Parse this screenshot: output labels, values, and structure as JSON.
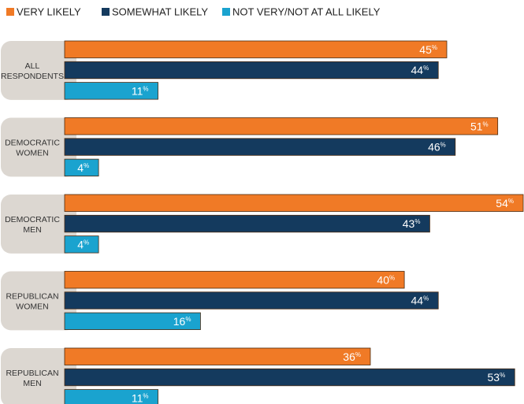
{
  "chart_data": {
    "type": "bar",
    "orientation": "horizontal",
    "categories": [
      [
        "ALL",
        "RESPONDENTS"
      ],
      [
        "DEMOCRATIC",
        "WOMEN"
      ],
      [
        "DEMOCRATIC",
        "MEN"
      ],
      [
        "REPUBLICAN",
        "WOMEN"
      ],
      [
        "REPUBLICAN",
        "MEN"
      ]
    ],
    "series": [
      {
        "name": "VERY LIKELY",
        "color": "#f07a26",
        "values": [
          45,
          51,
          54,
          40,
          36
        ]
      },
      {
        "name": "SOMEWHAT LIKELY",
        "color": "#143a5e",
        "values": [
          44,
          46,
          43,
          44,
          53
        ]
      },
      {
        "name": "NOT VERY/NOT AT ALL LIKELY",
        "color": "#1aa3cf",
        "values": [
          11,
          4,
          4,
          16,
          11
        ]
      }
    ],
    "value_suffix": "%",
    "xlim": [
      0,
      54
    ],
    "grid": false,
    "legend_position": "top-left",
    "title": "",
    "xlabel": "",
    "ylabel": ""
  }
}
